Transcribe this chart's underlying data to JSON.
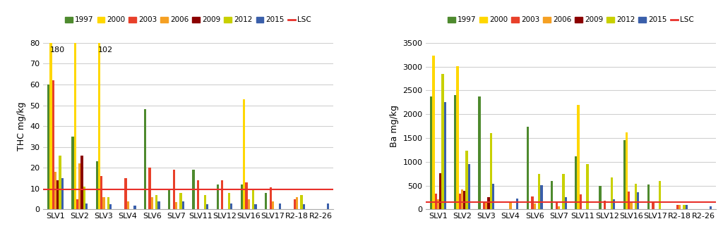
{
  "categories": [
    "SLV1",
    "SLV2",
    "SLV3",
    "SLV4",
    "SLV6",
    "SLV7",
    "SLV11",
    "SLV12",
    "SLV16",
    "SLV17",
    "R2-18",
    "R2-26"
  ],
  "years": [
    "1997",
    "2000",
    "2003",
    "2006",
    "2009",
    "2012",
    "2015"
  ],
  "colors": [
    "#4e8a2e",
    "#ffd700",
    "#e8402a",
    "#f5a023",
    "#8b0000",
    "#c8d000",
    "#3a5faa"
  ],
  "lsc_color": "#e8302a",
  "thc": {
    "SLV1": [
      60,
      180,
      62,
      18,
      14,
      26,
      15
    ],
    "SLV2": [
      35,
      80,
      5,
      22,
      26,
      11,
      3
    ],
    "SLV3": [
      23,
      102,
      16,
      6,
      0,
      6,
      2.5
    ],
    "SLV4": [
      0,
      0,
      15,
      4,
      0,
      0,
      2
    ],
    "SLV6": [
      48,
      0,
      20,
      6,
      0,
      7,
      4
    ],
    "SLV7": [
      10,
      0,
      19,
      3.5,
      0,
      8,
      4
    ],
    "SLV11": [
      19,
      0,
      14,
      0,
      0,
      7,
      2.5
    ],
    "SLV12": [
      12,
      0,
      14,
      0,
      0,
      8,
      3
    ],
    "SLV16": [
      12,
      53,
      13,
      5,
      0,
      9.5,
      2.5
    ],
    "SLV17": [
      8,
      0,
      10.5,
      4,
      0,
      0,
      3
    ],
    "R2-18": [
      0,
      0,
      5,
      6,
      0,
      7,
      2.5
    ],
    "R2-26": [
      0,
      0,
      0,
      0,
      0,
      0,
      3
    ]
  },
  "ba": {
    "SLV1": [
      2380,
      3230,
      335,
      215,
      755,
      2840,
      2260
    ],
    "SLV2": [
      2410,
      3010,
      330,
      415,
      395,
      1240,
      950
    ],
    "SLV3": [
      2370,
      0,
      165,
      165,
      260,
      1600,
      545
    ],
    "SLV4": [
      0,
      0,
      0,
      145,
      0,
      0,
      225
    ],
    "SLV6": [
      1730,
      0,
      280,
      120,
      0,
      745,
      510
    ],
    "SLV7": [
      600,
      0,
      135,
      65,
      0,
      745,
      260
    ],
    "SLV11": [
      1120,
      2200,
      310,
      0,
      0,
      960,
      0
    ],
    "SLV12": [
      490,
      0,
      185,
      0,
      0,
      665,
      220
    ],
    "SLV16": [
      1460,
      1620,
      380,
      140,
      0,
      540,
      360
    ],
    "SLV17": [
      530,
      0,
      145,
      0,
      0,
      605,
      0
    ],
    "R2-18": [
      0,
      0,
      100,
      90,
      0,
      100,
      95
    ],
    "R2-26": [
      0,
      0,
      0,
      0,
      0,
      0,
      65
    ]
  },
  "thc_lsc": 9.5,
  "ba_lsc": 160,
  "thc_ylim": [
    0,
    80
  ],
  "ba_ylim": [
    0,
    3500
  ],
  "thc_yticks": [
    0,
    10,
    20,
    30,
    40,
    50,
    60,
    70,
    80
  ],
  "ba_yticks": [
    0,
    500,
    1000,
    1500,
    2000,
    2500,
    3000,
    3500
  ],
  "thc_ylabel": "THC mg/kg",
  "ba_ylabel": "Ba mg/kg",
  "background_color": "#ffffff",
  "grid_color": "#d0d0d0"
}
